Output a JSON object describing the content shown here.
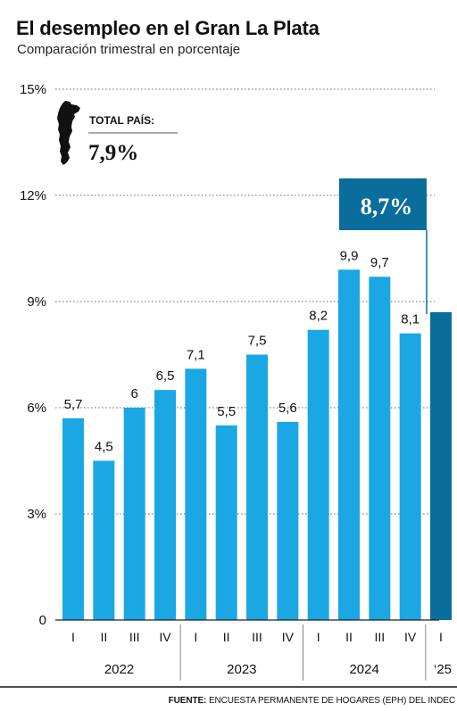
{
  "title": "El desempleo en el Gran La Plata",
  "subtitle": "Comparación trimestral en porcentaje",
  "national_box": {
    "label": "TOTAL PAÍS:",
    "value": "7,9%"
  },
  "highlight": {
    "value_label": "8,7%"
  },
  "source": {
    "prefix": "FUENTE:",
    "text": "ENCUESTA PERMANENTE DE HOGARES (EPH) DEL INDEC"
  },
  "colors": {
    "bar": "#1aa7e4",
    "bar_highlight": "#0a6d9c",
    "highlight_box": "#0a6d9c",
    "grid": "#666666",
    "axis": "#222222"
  },
  "icons": {
    "country_map": "argentina-map-icon"
  },
  "chart_data": {
    "type": "bar",
    "categories": [
      "I",
      "II",
      "III",
      "IV",
      "I",
      "II",
      "III",
      "IV",
      "I",
      "II",
      "III",
      "IV",
      "I"
    ],
    "groups": [
      {
        "label": "2022",
        "count": 4
      },
      {
        "label": "2023",
        "count": 4
      },
      {
        "label": "2024",
        "count": 4
      },
      {
        "label": "‘25",
        "count": 1
      }
    ],
    "values": [
      5.7,
      4.5,
      6,
      6.5,
      7.1,
      5.5,
      7.5,
      5.6,
      8.2,
      9.9,
      9.7,
      8.1,
      8.7
    ],
    "value_labels": [
      "5,7",
      "4,5",
      "6",
      "6,5",
      "7,1",
      "5,5",
      "7,5",
      "5,6",
      "8,2",
      "9,9",
      "9,7",
      "8,1",
      ""
    ],
    "highlight_index": 12,
    "yticks": [
      0,
      3,
      6,
      9,
      12,
      15
    ],
    "ytick_labels": [
      "0",
      "3%",
      "6%",
      "9%",
      "12%",
      "15%"
    ],
    "ylim": [
      0,
      15
    ],
    "grid": true
  }
}
